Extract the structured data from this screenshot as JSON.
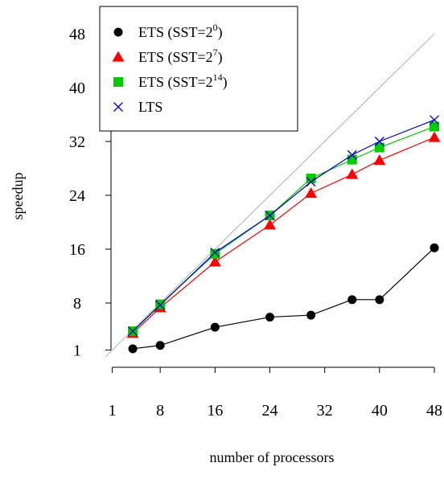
{
  "chart_data": {
    "type": "line",
    "title": "",
    "xlabel": "number of processors",
    "ylabel": "speedup",
    "x_ticks": [
      "1",
      "8",
      "16",
      "24",
      "32",
      "40",
      "48"
    ],
    "y_ticks": [
      "1",
      "8",
      "16",
      "24",
      "32",
      "40",
      "48"
    ],
    "xlim": [
      0,
      48
    ],
    "ylim": [
      1,
      48
    ],
    "legend_position": "top-left",
    "reference_line": {
      "type": "identity",
      "from": [
        0,
        0
      ],
      "to": [
        48,
        48
      ],
      "color": "#bbbbbb"
    },
    "series": [
      {
        "name_main": "ETS (SST=2",
        "name_sup": "0",
        "name_end": ")",
        "marker": "circle",
        "color": "#000000",
        "x": [
          4,
          8,
          16,
          24,
          30,
          36,
          40,
          48
        ],
        "y": [
          1.2,
          1.7,
          4.4,
          5.9,
          6.2,
          8.5,
          8.5,
          16.2
        ]
      },
      {
        "name_main": "ETS (SST=2",
        "name_sup": "7",
        "name_end": ")",
        "marker": "triangle",
        "color": "#ff0000",
        "x": [
          4,
          8,
          16,
          24,
          30,
          36,
          40,
          48
        ],
        "y": [
          3.5,
          7.3,
          14.1,
          19.6,
          24.3,
          27.1,
          29.2,
          32.6
        ]
      },
      {
        "name_main": "ETS (SST=2",
        "name_sup": "14",
        "name_end": ")",
        "marker": "square",
        "color": "#00cc00",
        "x": [
          4,
          8,
          16,
          24,
          30,
          36,
          40,
          48
        ],
        "y": [
          3.8,
          7.8,
          15.3,
          21.0,
          26.5,
          29.3,
          31.1,
          34.2
        ]
      },
      {
        "name_main": "LTS",
        "name_sup": "",
        "name_end": "",
        "marker": "x",
        "color": "#0000cc",
        "x": [
          4,
          8,
          16,
          24,
          30,
          36,
          40,
          48
        ],
        "y": [
          3.8,
          7.7,
          15.5,
          21.0,
          26.0,
          30.0,
          32.0,
          35.2
        ]
      }
    ]
  }
}
